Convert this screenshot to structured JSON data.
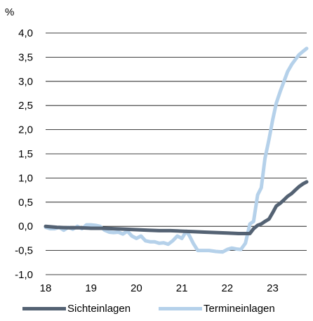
{
  "chart_data": {
    "type": "line",
    "unit_label": "%",
    "x_ticks": [
      "18",
      "19",
      "20",
      "21",
      "22",
      "23"
    ],
    "y_ticks": [
      "4,0",
      "3,5",
      "3,0",
      "2,5",
      "2,0",
      "1,5",
      "1,0",
      "0,5",
      "0,0",
      "-0,5",
      "-1,0"
    ],
    "ylim": [
      -1.0,
      4.0
    ],
    "xlim": [
      2018.0,
      2023.75
    ],
    "grid": "horizontal",
    "legend_position": "bottom",
    "series": [
      {
        "name": "Sichteinlagen",
        "color": "#546273",
        "x": [
          2018.0,
          2018.25,
          2018.5,
          2018.75,
          2019.0,
          2019.25,
          2019.5,
          2019.75,
          2020.0,
          2020.25,
          2020.5,
          2020.75,
          2021.0,
          2021.25,
          2021.5,
          2021.75,
          2022.0,
          2022.25,
          2022.5,
          2022.58,
          2022.67,
          2022.75,
          2022.83,
          2022.92,
          2023.0,
          2023.08,
          2023.17,
          2023.25,
          2023.33,
          2023.42,
          2023.5,
          2023.58,
          2023.67,
          2023.75
        ],
        "y": [
          0.0,
          -0.02,
          -0.03,
          -0.03,
          -0.04,
          -0.04,
          -0.05,
          -0.06,
          -0.07,
          -0.08,
          -0.09,
          -0.09,
          -0.1,
          -0.11,
          -0.12,
          -0.13,
          -0.14,
          -0.15,
          -0.15,
          -0.05,
          0.02,
          0.05,
          0.1,
          0.15,
          0.28,
          0.42,
          0.48,
          0.55,
          0.62,
          0.68,
          0.75,
          0.82,
          0.88,
          0.92
        ]
      },
      {
        "name": "Termineinlagen",
        "color": "#b5d1ea",
        "x": [
          2018.0,
          2018.1,
          2018.2,
          2018.3,
          2018.4,
          2018.5,
          2018.6,
          2018.7,
          2018.8,
          2018.9,
          2019.0,
          2019.1,
          2019.2,
          2019.3,
          2019.4,
          2019.5,
          2019.6,
          2019.7,
          2019.8,
          2019.9,
          2020.0,
          2020.1,
          2020.2,
          2020.3,
          2020.4,
          2020.5,
          2020.6,
          2020.7,
          2020.8,
          2020.9,
          2021.0,
          2021.1,
          2021.17,
          2021.25,
          2021.35,
          2021.45,
          2021.6,
          2021.75,
          2021.9,
          2022.0,
          2022.1,
          2022.2,
          2022.3,
          2022.4,
          2022.5,
          2022.58,
          2022.67,
          2022.75,
          2022.83,
          2022.92,
          2023.0,
          2023.08,
          2023.17,
          2023.25,
          2023.33,
          2023.42,
          2023.5,
          2023.58,
          2023.67,
          2023.75
        ],
        "y": [
          -0.02,
          -0.05,
          -0.05,
          -0.02,
          -0.08,
          -0.02,
          -0.06,
          0.0,
          -0.05,
          0.03,
          0.03,
          0.02,
          0.0,
          -0.08,
          -0.12,
          -0.13,
          -0.12,
          -0.16,
          -0.1,
          -0.2,
          -0.25,
          -0.2,
          -0.3,
          -0.32,
          -0.32,
          -0.35,
          -0.34,
          -0.37,
          -0.3,
          -0.2,
          -0.25,
          -0.1,
          -0.2,
          -0.35,
          -0.5,
          -0.5,
          -0.5,
          -0.52,
          -0.53,
          -0.48,
          -0.45,
          -0.47,
          -0.48,
          -0.35,
          0.05,
          0.1,
          0.65,
          0.8,
          1.4,
          1.8,
          2.2,
          2.55,
          2.8,
          3.0,
          3.2,
          3.35,
          3.45,
          3.55,
          3.62,
          3.68
        ]
      }
    ]
  }
}
